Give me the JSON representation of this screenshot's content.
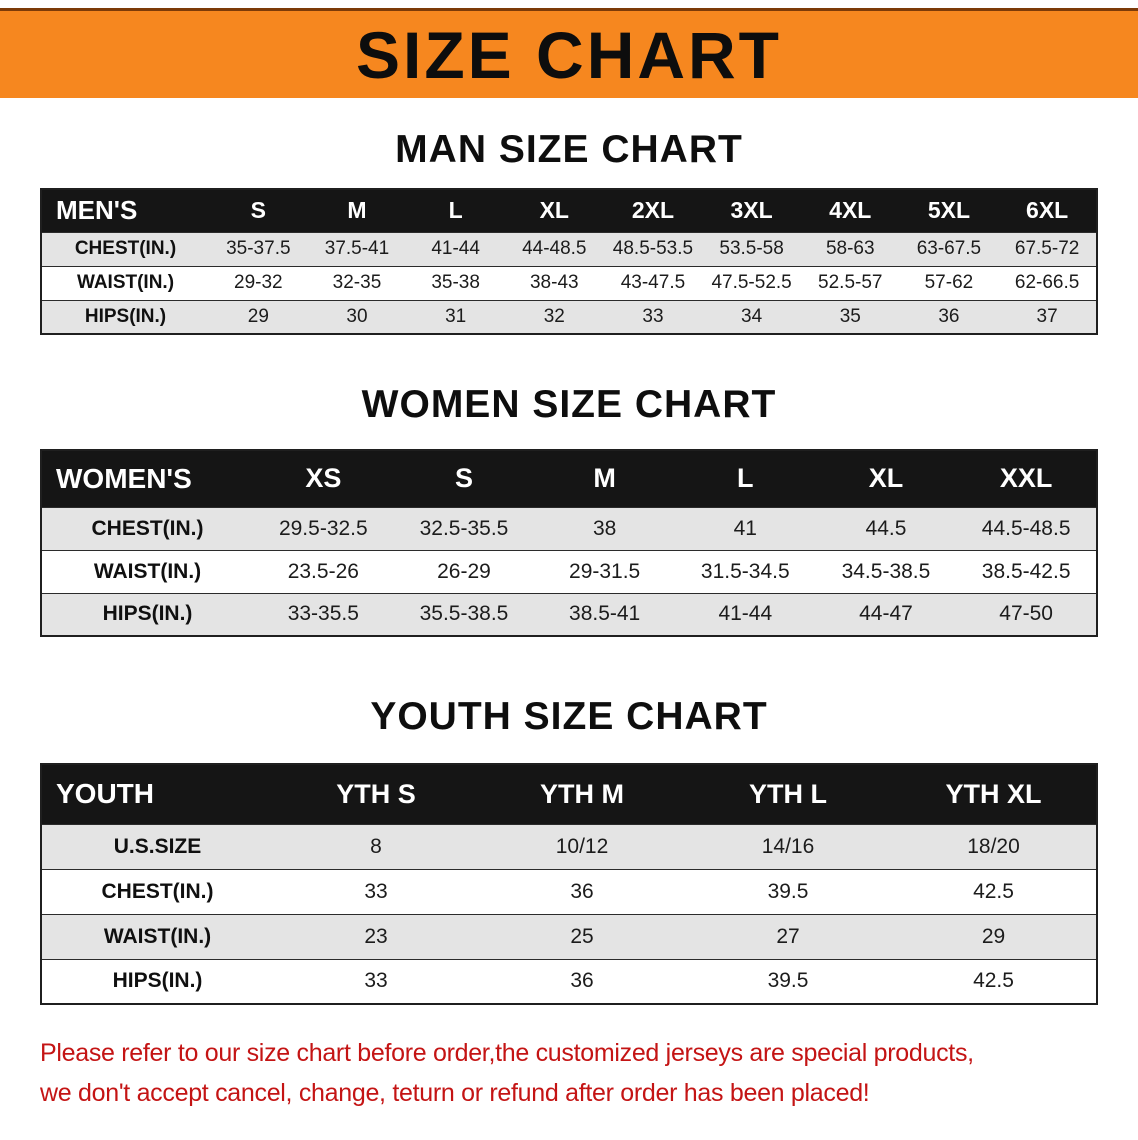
{
  "banner": {
    "title": "SIZE CHART"
  },
  "colors": {
    "banner_orange": "#f6871f",
    "header_black": "#151515",
    "stripe_gray": "#e4e4e4",
    "note_red": "#c41414"
  },
  "sections": [
    {
      "heading": "MAN SIZE CHART",
      "table": {
        "header": [
          "MEN'S",
          "S",
          "M",
          "L",
          "XL",
          "2XL",
          "3XL",
          "4XL",
          "5XL",
          "6XL"
        ],
        "rows": [
          [
            "CHEST(IN.)",
            "35-37.5",
            "37.5-41",
            "41-44",
            "44-48.5",
            "48.5-53.5",
            "53.5-58",
            "58-63",
            "63-67.5",
            "67.5-72"
          ],
          [
            "WAIST(IN.)",
            "29-32",
            "32-35",
            "35-38",
            "38-43",
            "43-47.5",
            "47.5-52.5",
            "52.5-57",
            "57-62",
            "62-66.5"
          ],
          [
            "HIPS(IN.)",
            "29",
            "30",
            "31",
            "32",
            "33",
            "34",
            "35",
            "36",
            "37"
          ]
        ]
      }
    },
    {
      "heading": "WOMEN SIZE CHART",
      "table": {
        "header": [
          "WOMEN'S",
          "XS",
          "S",
          "M",
          "L",
          "XL",
          "XXL"
        ],
        "rows": [
          [
            "CHEST(IN.)",
            "29.5-32.5",
            "32.5-35.5",
            "38",
            "41",
            "44.5",
            "44.5-48.5"
          ],
          [
            "WAIST(IN.)",
            "23.5-26",
            "26-29",
            "29-31.5",
            "31.5-34.5",
            "34.5-38.5",
            "38.5-42.5"
          ],
          [
            "HIPS(IN.)",
            "33-35.5",
            "35.5-38.5",
            "38.5-41",
            "41-44",
            "44-47",
            "47-50"
          ]
        ]
      }
    },
    {
      "heading": "YOUTH SIZE CHART",
      "table": {
        "header": [
          "YOUTH",
          "YTH S",
          "YTH M",
          "YTH L",
          "YTH XL"
        ],
        "rows": [
          [
            "U.S.SIZE",
            "8",
            "10/12",
            "14/16",
            "18/20"
          ],
          [
            "CHEST(IN.)",
            "33",
            "36",
            "39.5",
            "42.5"
          ],
          [
            "WAIST(IN.)",
            "23",
            "25",
            "27",
            "29"
          ],
          [
            "HIPS(IN.)",
            "33",
            "36",
            "39.5",
            "42.5"
          ]
        ]
      }
    }
  ],
  "footer": {
    "line1": "Please refer to our size chart before order,the customized jerseys are special products,",
    "line2": "we don't accept cancel, change, teturn or refund after order has been placed!"
  }
}
